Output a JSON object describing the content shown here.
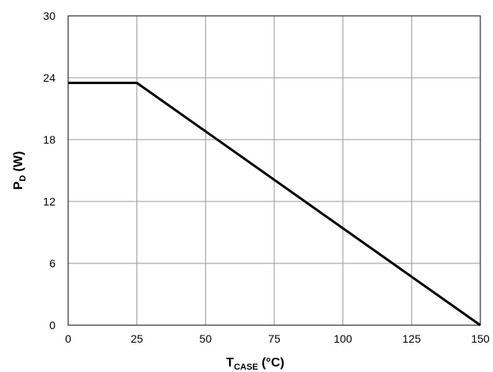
{
  "chart_data": {
    "type": "line",
    "xlabel": {
      "main": "T",
      "sub": "CASE",
      "suffix": " (°C)"
    },
    "ylabel": {
      "main": "P",
      "sub": "D",
      "suffix": " (W)"
    },
    "xlim": [
      0,
      150
    ],
    "ylim": [
      0,
      30
    ],
    "xticks": [
      0,
      25,
      50,
      75,
      100,
      125,
      150
    ],
    "yticks": [
      0,
      6,
      12,
      18,
      24,
      30
    ],
    "grid": true,
    "series": [
      {
        "x": [
          0,
          25,
          150
        ],
        "y": [
          23.5,
          23.5,
          0
        ],
        "color": "#000000"
      }
    ]
  }
}
